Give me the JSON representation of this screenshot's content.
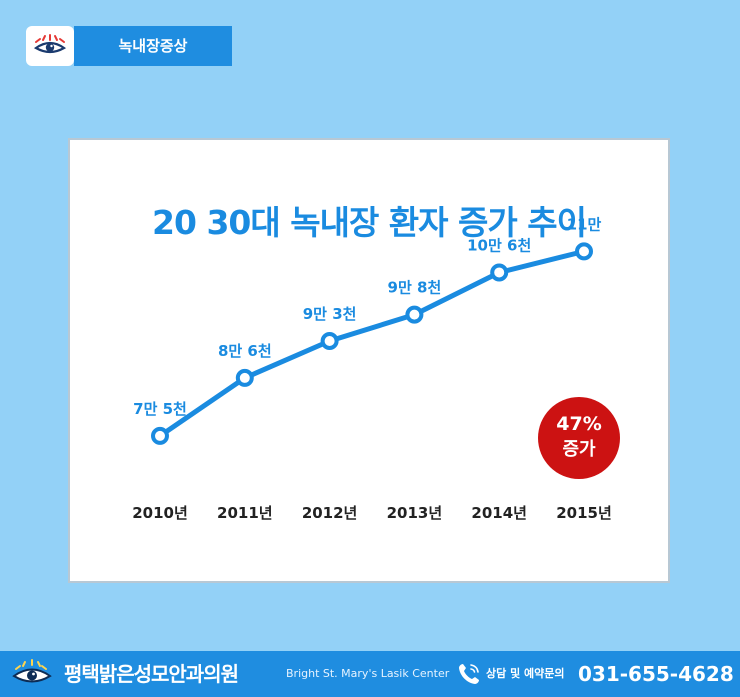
{
  "tag": {
    "label": "녹내장증상"
  },
  "chart_data": {
    "type": "line",
    "title": "20 30대 녹내장 환자 증가 추이",
    "categories": [
      "2010년",
      "2011년",
      "2012년",
      "2013년",
      "2014년",
      "2015년"
    ],
    "values": [
      75000,
      86000,
      93000,
      98000,
      106000,
      110000
    ],
    "data_labels": [
      "7만 5천",
      "8만 6천",
      "9만 3천",
      "9만 8천",
      "10만 6천",
      "11만"
    ],
    "ylim": [
      60000,
      115000
    ],
    "grid": false,
    "annotation": {
      "line1": "47%",
      "line2": "증가"
    },
    "colors": {
      "line": "#1a8be0",
      "badge": "#cc1212"
    }
  },
  "footer": {
    "clinic_name": "평택밝은성모안과의원",
    "english_name": "Bright St. Mary's Lasik Center",
    "inquiry_label": "상담 및 예약문의",
    "phone": "031-655-4628"
  }
}
